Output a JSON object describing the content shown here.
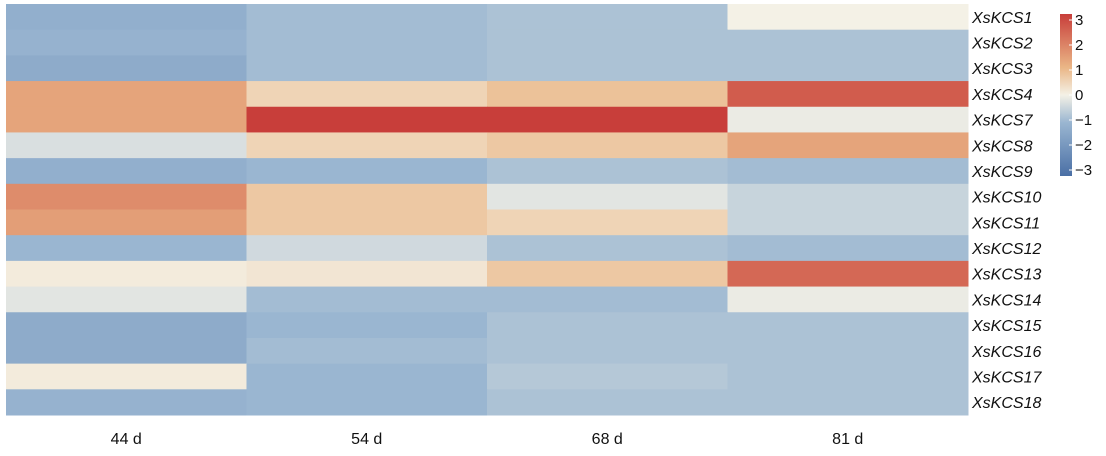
{
  "chart_data": {
    "type": "heatmap",
    "title": "",
    "xlabel": "",
    "ylabel": "",
    "columns": [
      "44 d",
      "54 d",
      "68 d",
      "81 d"
    ],
    "rows": [
      "XsKCS1",
      "XsKCS2",
      "XsKCS3",
      "XsKCS4",
      "XsKCS7",
      "XsKCS8",
      "XsKCS9",
      "XsKCS10",
      "XsKCS11",
      "XsKCS12",
      "XsKCS13",
      "XsKCS14",
      "XsKCS15",
      "XsKCS16",
      "XsKCS17",
      "XsKCS18"
    ],
    "values": [
      [
        -1.2,
        -0.9,
        -0.8,
        0.0
      ],
      [
        -1.1,
        -0.9,
        -0.8,
        -0.8
      ],
      [
        -1.3,
        -0.9,
        -0.8,
        -0.8
      ],
      [
        1.3,
        0.5,
        0.8,
        2.5
      ],
      [
        1.3,
        3.2,
        3.2,
        -0.1
      ],
      [
        -0.3,
        0.5,
        0.7,
        1.3
      ],
      [
        -1.2,
        -1.0,
        -0.8,
        -0.9
      ],
      [
        1.7,
        0.7,
        -0.2,
        -0.5
      ],
      [
        1.4,
        0.7,
        0.5,
        -0.5
      ],
      [
        -1.0,
        -0.4,
        -0.8,
        -0.9
      ],
      [
        0.1,
        0.2,
        0.7,
        2.3
      ],
      [
        -0.2,
        -0.9,
        -0.9,
        -0.1
      ],
      [
        -1.3,
        -1.0,
        -0.8,
        -0.8
      ],
      [
        -1.3,
        -0.9,
        -0.8,
        -0.8
      ],
      [
        0.1,
        -1.0,
        -0.7,
        -0.8
      ],
      [
        -1.1,
        -1.0,
        -0.8,
        -0.8
      ]
    ],
    "colorbar": {
      "ticks": [
        "3",
        "2",
        "1",
        "0",
        "−1",
        "−2",
        "−3"
      ],
      "range": [
        -3,
        3
      ],
      "colors": {
        "low": "#4a6fa5",
        "mid_low": "#9ab6d1",
        "mid": "#f4f1e6",
        "mid_high": "#eab686",
        "high": "#c83e3a"
      }
    },
    "grid": false,
    "legend": "right"
  }
}
